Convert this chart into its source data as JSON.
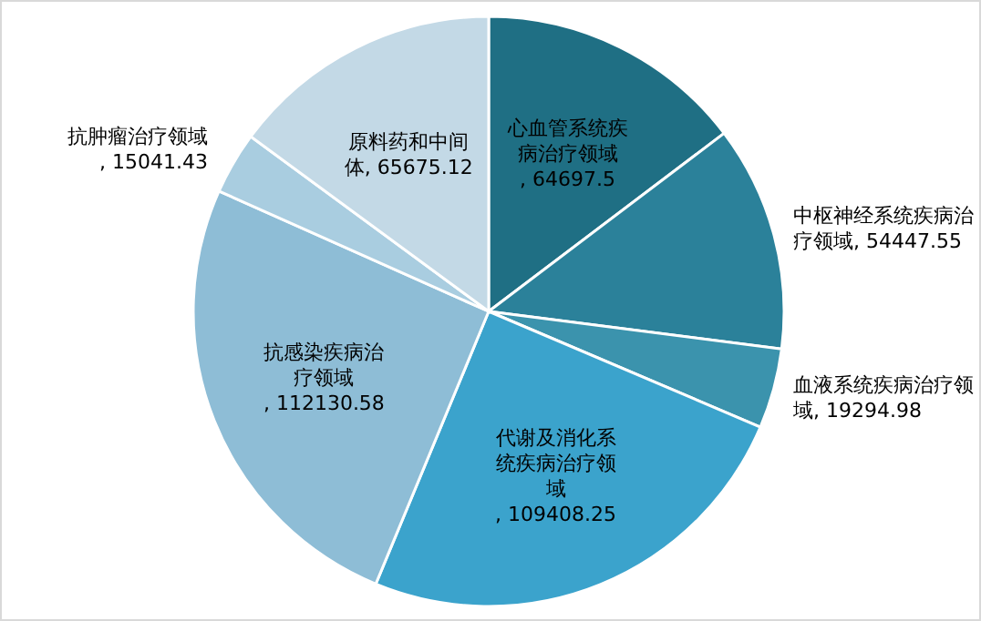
{
  "chart_data": {
    "type": "pie",
    "categories": [
      "心血管系统疾病治疗领域",
      "中枢神经系统疾病治疗领域",
      "血液系统疾病治疗领域",
      "代谢及消化系统疾病治疗领域",
      "抗感染疾病治疗领域",
      "抗肿瘤治疗领域",
      "原料药和中间体"
    ],
    "values": [
      64697.5,
      54447.55,
      19294.98,
      109408.25,
      112130.58,
      15041.43,
      65675.12
    ],
    "colors": [
      "#1f6f84",
      "#2b819a",
      "#3b93ad",
      "#3ba3cc",
      "#8ebdd6",
      "#a9cde0",
      "#c3d9e6"
    ],
    "value_labels": [
      ", 64697.5",
      ", 54447.55",
      ", 19294.98",
      ", 109408.25",
      ", 112130.58",
      ", 15041.43",
      ", 65675.12"
    ],
    "legend": false
  }
}
